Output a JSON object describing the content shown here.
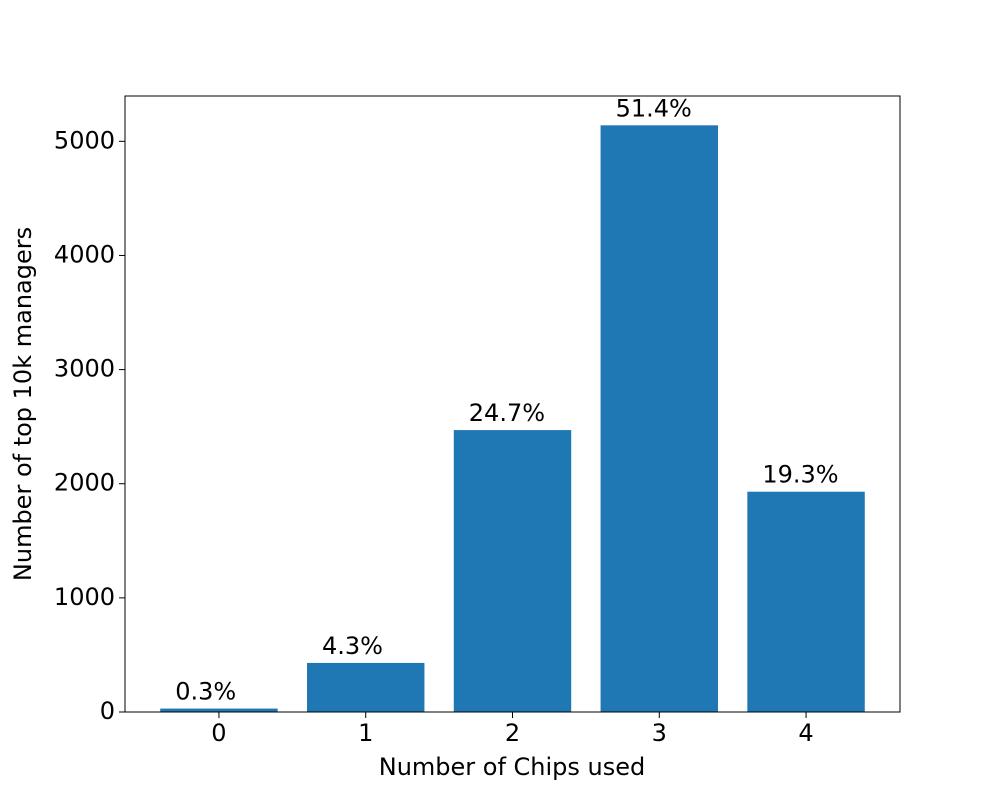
{
  "chart_data": {
    "type": "bar",
    "xlabel": "Number of Chips used",
    "ylabel": "Number of top 10k managers",
    "categories": [
      "0",
      "1",
      "2",
      "3",
      "4"
    ],
    "values": [
      30,
      430,
      2470,
      5140,
      1930
    ],
    "value_labels": [
      "0.3%",
      "4.3%",
      "24.7%",
      "51.4%",
      "19.3%"
    ],
    "color": "#1f77b4",
    "ylim": [
      0,
      5397
    ],
    "yticks": [
      0,
      1000,
      2000,
      3000,
      4000,
      5000
    ],
    "grid": false
  }
}
